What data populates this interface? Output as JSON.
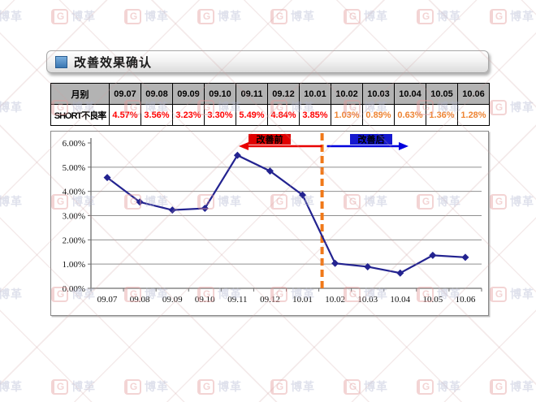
{
  "header": {
    "title": "改善效果确认",
    "bullet_color": "#3a77b2"
  },
  "watermark": {
    "icon": "G",
    "text": "博革"
  },
  "table": {
    "columns": [
      "月别",
      "09.07",
      "09.08",
      "09.09",
      "09.10",
      "09.11",
      "09.12",
      "10.01",
      "10.02",
      "10.03",
      "10.04",
      "10.05",
      "10.06"
    ],
    "rows": [
      {
        "label": "SHORT不良率",
        "values": [
          "4.57%",
          "3.56%",
          "3.23%",
          "3.30%",
          "5.49%",
          "4.84%",
          "3.85%",
          "1.03%",
          "0.89%",
          "0.63%",
          "1.36%",
          "1.28%"
        ]
      }
    ],
    "before_count": 7,
    "before_value_color": "#ff0000",
    "after_value_color": "#ee8433",
    "header_bg": "#b3b3b3"
  },
  "chart_data": {
    "type": "line",
    "title": "",
    "x": [
      "09.07",
      "09.08",
      "09.09",
      "09.10",
      "09.11",
      "09.12",
      "10.01",
      "10.02",
      "10.03",
      "10.04",
      "10.05",
      "10.06"
    ],
    "series": [
      {
        "name": "SHORT不良率",
        "color": "#232390",
        "marker": "diamond",
        "values": [
          4.57,
          3.56,
          3.23,
          3.3,
          5.49,
          4.84,
          3.85,
          1.03,
          0.89,
          0.63,
          1.36,
          1.28
        ]
      }
    ],
    "ylim": [
      0,
      6
    ],
    "yticks": [
      0,
      1,
      2,
      3,
      4,
      5,
      6
    ],
    "ytick_labels": [
      "0.00%",
      "1.00%",
      "2.00%",
      "3.00%",
      "4.00%",
      "5.00%",
      "6.00%"
    ],
    "grid": true,
    "legend": "none",
    "divider": {
      "between": [
        "10.01",
        "10.02"
      ],
      "color": "#f07818",
      "style": "dashed"
    },
    "annotations": {
      "before": {
        "label": "改善前",
        "box_color": "#e00000",
        "text_color": "#000000",
        "arrow_color": "#e80000",
        "direction": "left"
      },
      "after": {
        "label": "改善后",
        "box_color": "#1518cf",
        "text_color": "#000000",
        "arrow_color": "#0000dd",
        "direction": "right"
      }
    }
  }
}
